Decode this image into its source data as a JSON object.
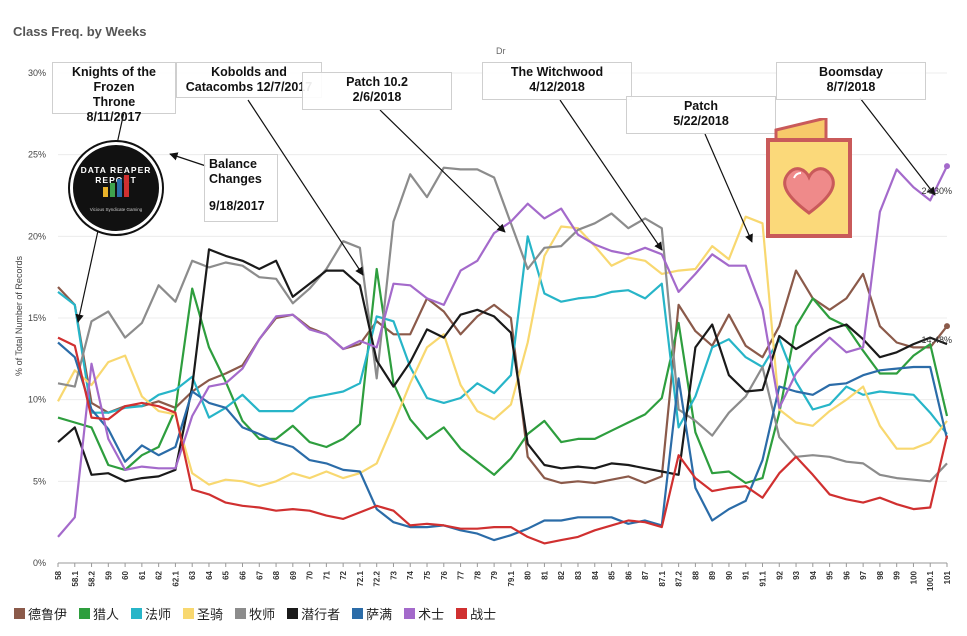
{
  "header": {
    "title": "Class Freq. by Weeks",
    "top_label": "Dr"
  },
  "annotations": [
    {
      "text_lines": [
        "Knights of the Frozen",
        "Throne",
        "8/11/2017"
      ]
    },
    {
      "text_lines": [
        "Kobolds and",
        "Catacombs 12/7/2017"
      ]
    },
    {
      "text_lines": [
        "Patch 10.2",
        "2/6/2018"
      ]
    },
    {
      "text_lines": [
        "The Witchwood",
        "4/12/2018"
      ]
    },
    {
      "text_lines": [
        "Patch",
        "5/22/2018"
      ]
    },
    {
      "text_lines": [
        "Boomsday",
        "8/7/2018"
      ]
    },
    {
      "text_lines": [
        "Balance",
        "Changes",
        "",
        "9/18/2017"
      ]
    }
  ],
  "badge": {
    "text": "DATA REAPER REPORT",
    "sub": "Vicious Syndicate Gaming"
  },
  "chart_data": {
    "type": "line",
    "title": "Class Freq. by Weeks",
    "ylabel": "% of Total Number of Records",
    "xlabel": "",
    "ylim": [
      0,
      30
    ],
    "yticks": [
      0,
      5,
      10,
      15,
      20,
      25,
      30
    ],
    "ytick_labels": [
      "0%",
      "5%",
      "10%",
      "15%",
      "20%",
      "25%",
      "30%"
    ],
    "categories": [
      "58",
      "58.1",
      "58.2",
      "59",
      "60",
      "61",
      "62",
      "62.1",
      "63",
      "64",
      "65",
      "66",
      "67",
      "68",
      "69",
      "70",
      "71",
      "72",
      "72.1",
      "72.2",
      "73",
      "74",
      "75",
      "76",
      "77",
      "78",
      "79",
      "79.1",
      "80",
      "81",
      "82",
      "83",
      "84",
      "85",
      "86",
      "87",
      "87.1",
      "87.2",
      "88",
      "89",
      "90",
      "91",
      "91.1",
      "92",
      "93",
      "94",
      "95",
      "96",
      "97",
      "98",
      "99",
      "100",
      "100.1",
      "101"
    ],
    "series": [
      {
        "name": "德鲁伊",
        "color": "#8B5A4A",
        "values": [
          16.9,
          15.8,
          9.8,
          9.2,
          9.6,
          9.6,
          9.9,
          9.5,
          10.5,
          11.2,
          11.6,
          12.1,
          13.7,
          15.0,
          15.2,
          14.4,
          14.0,
          13.1,
          13.4,
          14.8,
          14.0,
          14.0,
          16.2,
          15.4,
          14.0,
          15.1,
          15.8,
          15.0,
          6.5,
          5.2,
          4.9,
          5.0,
          4.9,
          5.1,
          5.3,
          4.9,
          5.3,
          15.8,
          14.2,
          13.3,
          15.2,
          13.3,
          12.6,
          14.5,
          17.9,
          16.2,
          15.5,
          16.2,
          17.7,
          14.5,
          13.5,
          13.2,
          13.2,
          14.5
        ]
      },
      {
        "name": "猎人",
        "color": "#2E9E3E",
        "values": [
          8.9,
          8.6,
          8.3,
          6.0,
          5.7,
          6.6,
          7.1,
          9.4,
          16.8,
          13.2,
          11.1,
          8.7,
          7.6,
          7.6,
          8.4,
          7.4,
          7.1,
          7.6,
          8.5,
          18.0,
          11.0,
          8.8,
          7.6,
          8.3,
          7.0,
          6.2,
          5.4,
          6.4,
          7.9,
          8.7,
          7.4,
          7.6,
          7.6,
          8.1,
          8.6,
          9.1,
          10.1,
          14.7,
          8.0,
          5.5,
          5.6,
          4.9,
          5.2,
          9.2,
          14.5,
          16.2,
          15.0,
          14.5,
          13.0,
          11.6,
          11.6,
          12.7,
          13.4,
          9.0
        ]
      },
      {
        "name": "法师",
        "color": "#27B5C8",
        "values": [
          16.6,
          15.8,
          9.2,
          9.2,
          9.5,
          9.6,
          10.3,
          10.6,
          11.4,
          8.9,
          9.5,
          10.3,
          9.3,
          9.3,
          9.3,
          10.1,
          10.3,
          10.5,
          11.0,
          15.1,
          14.8,
          12.0,
          10.1,
          9.8,
          10.1,
          11.0,
          10.4,
          11.5,
          20.0,
          16.5,
          16.0,
          16.2,
          16.3,
          16.6,
          16.7,
          16.2,
          17.1,
          8.3,
          10.2,
          13.2,
          13.7,
          12.6,
          12.0,
          13.7,
          11.1,
          9.4,
          9.7,
          10.8,
          10.3,
          10.5,
          10.4,
          10.3,
          9.2,
          7.9
        ]
      },
      {
        "name": "圣骑",
        "color": "#F8D870",
        "values": [
          9.9,
          11.8,
          10.9,
          12.3,
          12.7,
          10.2,
          9.3,
          9.1,
          5.5,
          4.8,
          5.1,
          5.0,
          4.7,
          5.0,
          5.5,
          5.2,
          5.6,
          5.2,
          5.5,
          6.1,
          8.5,
          11.0,
          13.2,
          14.0,
          10.9,
          9.3,
          8.8,
          9.7,
          13.5,
          18.8,
          20.6,
          20.5,
          19.4,
          18.2,
          18.7,
          18.5,
          17.7,
          17.9,
          18.0,
          19.4,
          18.6,
          21.2,
          20.8,
          9.4,
          8.6,
          8.4,
          9.3,
          10.0,
          10.8,
          8.4,
          7.0,
          7.0,
          7.4,
          8.7
        ]
      },
      {
        "name": "牧师",
        "color": "#8C8C8C",
        "values": [
          11.0,
          10.8,
          14.8,
          15.4,
          13.8,
          14.7,
          17.0,
          16.0,
          18.5,
          18.1,
          18.4,
          18.2,
          17.5,
          17.4,
          15.9,
          16.8,
          18.0,
          19.7,
          19.3,
          11.3,
          20.9,
          23.8,
          22.4,
          24.2,
          24.1,
          24.1,
          23.6,
          20.8,
          18.0,
          19.3,
          19.4,
          20.4,
          20.8,
          21.4,
          20.5,
          21.1,
          20.5,
          9.4,
          8.7,
          7.8,
          9.2,
          10.2,
          12.0,
          7.7,
          6.5,
          6.6,
          6.5,
          6.2,
          6.1,
          5.4,
          5.2,
          5.1,
          5.0,
          6.1
        ]
      },
      {
        "name": "潜行者",
        "color": "#1A1A1A",
        "values": [
          7.4,
          8.3,
          5.4,
          5.5,
          5.0,
          5.2,
          5.3,
          5.7,
          10.8,
          19.2,
          18.8,
          18.5,
          18.0,
          18.5,
          16.3,
          17.1,
          17.9,
          17.9,
          17.0,
          12.4,
          10.8,
          12.3,
          14.3,
          13.8,
          15.2,
          15.5,
          15.1,
          14.1,
          7.3,
          6.0,
          5.8,
          5.9,
          5.8,
          6.1,
          6.0,
          5.8,
          5.6,
          5.4,
          13.2,
          14.6,
          11.5,
          10.5,
          10.6,
          13.9,
          13.1,
          13.7,
          14.3,
          14.6,
          13.7,
          12.6,
          12.9,
          13.4,
          13.8,
          13.4
        ]
      },
      {
        "name": "萨满",
        "color": "#2B6CA8",
        "values": [
          13.5,
          12.6,
          9.4,
          8.2,
          6.2,
          7.2,
          6.6,
          7.1,
          10.5,
          9.8,
          9.5,
          8.3,
          7.9,
          7.4,
          7.1,
          6.3,
          6.1,
          5.7,
          5.6,
          3.3,
          2.5,
          2.2,
          2.2,
          2.3,
          2.0,
          1.8,
          1.4,
          1.7,
          2.1,
          2.6,
          2.6,
          2.8,
          2.8,
          2.8,
          2.4,
          2.6,
          2.3,
          11.3,
          4.6,
          2.6,
          3.3,
          3.8,
          6.3,
          10.8,
          10.5,
          10.3,
          10.9,
          11.0,
          11.5,
          11.8,
          11.9,
          12.0,
          12.0,
          7.6
        ]
      },
      {
        "name": "术士",
        "color": "#A46ACB",
        "values": [
          1.6,
          2.8,
          12.2,
          7.6,
          5.7,
          5.9,
          5.8,
          5.8,
          9.0,
          10.8,
          11.0,
          11.9,
          13.7,
          15.1,
          15.2,
          14.3,
          14.0,
          13.1,
          13.6,
          13.2,
          17.1,
          17.0,
          16.2,
          15.8,
          17.9,
          18.5,
          20.2,
          20.9,
          22.0,
          21.1,
          21.7,
          20.1,
          19.5,
          19.1,
          18.9,
          19.3,
          18.9,
          16.6,
          17.7,
          18.9,
          18.2,
          18.2,
          15.5,
          9.5,
          11.6,
          12.8,
          13.8,
          12.9,
          13.2,
          21.5,
          24.1,
          23.0,
          22.2,
          24.3
        ]
      },
      {
        "name": "战士",
        "color": "#D03030",
        "values": [
          13.8,
          13.3,
          8.9,
          8.8,
          9.6,
          9.8,
          9.6,
          9.2,
          4.5,
          4.2,
          3.7,
          3.5,
          3.4,
          3.2,
          3.3,
          3.2,
          2.9,
          2.7,
          3.1,
          3.5,
          3.2,
          2.3,
          2.4,
          2.3,
          2.1,
          2.1,
          2.2,
          2.2,
          1.6,
          1.2,
          1.4,
          1.6,
          2.0,
          2.3,
          2.6,
          2.5,
          2.2,
          6.6,
          5.2,
          4.4,
          4.6,
          4.7,
          4.0,
          5.5,
          6.5,
          5.4,
          4.2,
          3.9,
          3.7,
          4.0,
          3.6,
          3.3,
          3.4,
          7.8
        ]
      }
    ],
    "end_labels": [
      "24.30%",
      "14.48%"
    ],
    "legend_position": "bottom"
  }
}
